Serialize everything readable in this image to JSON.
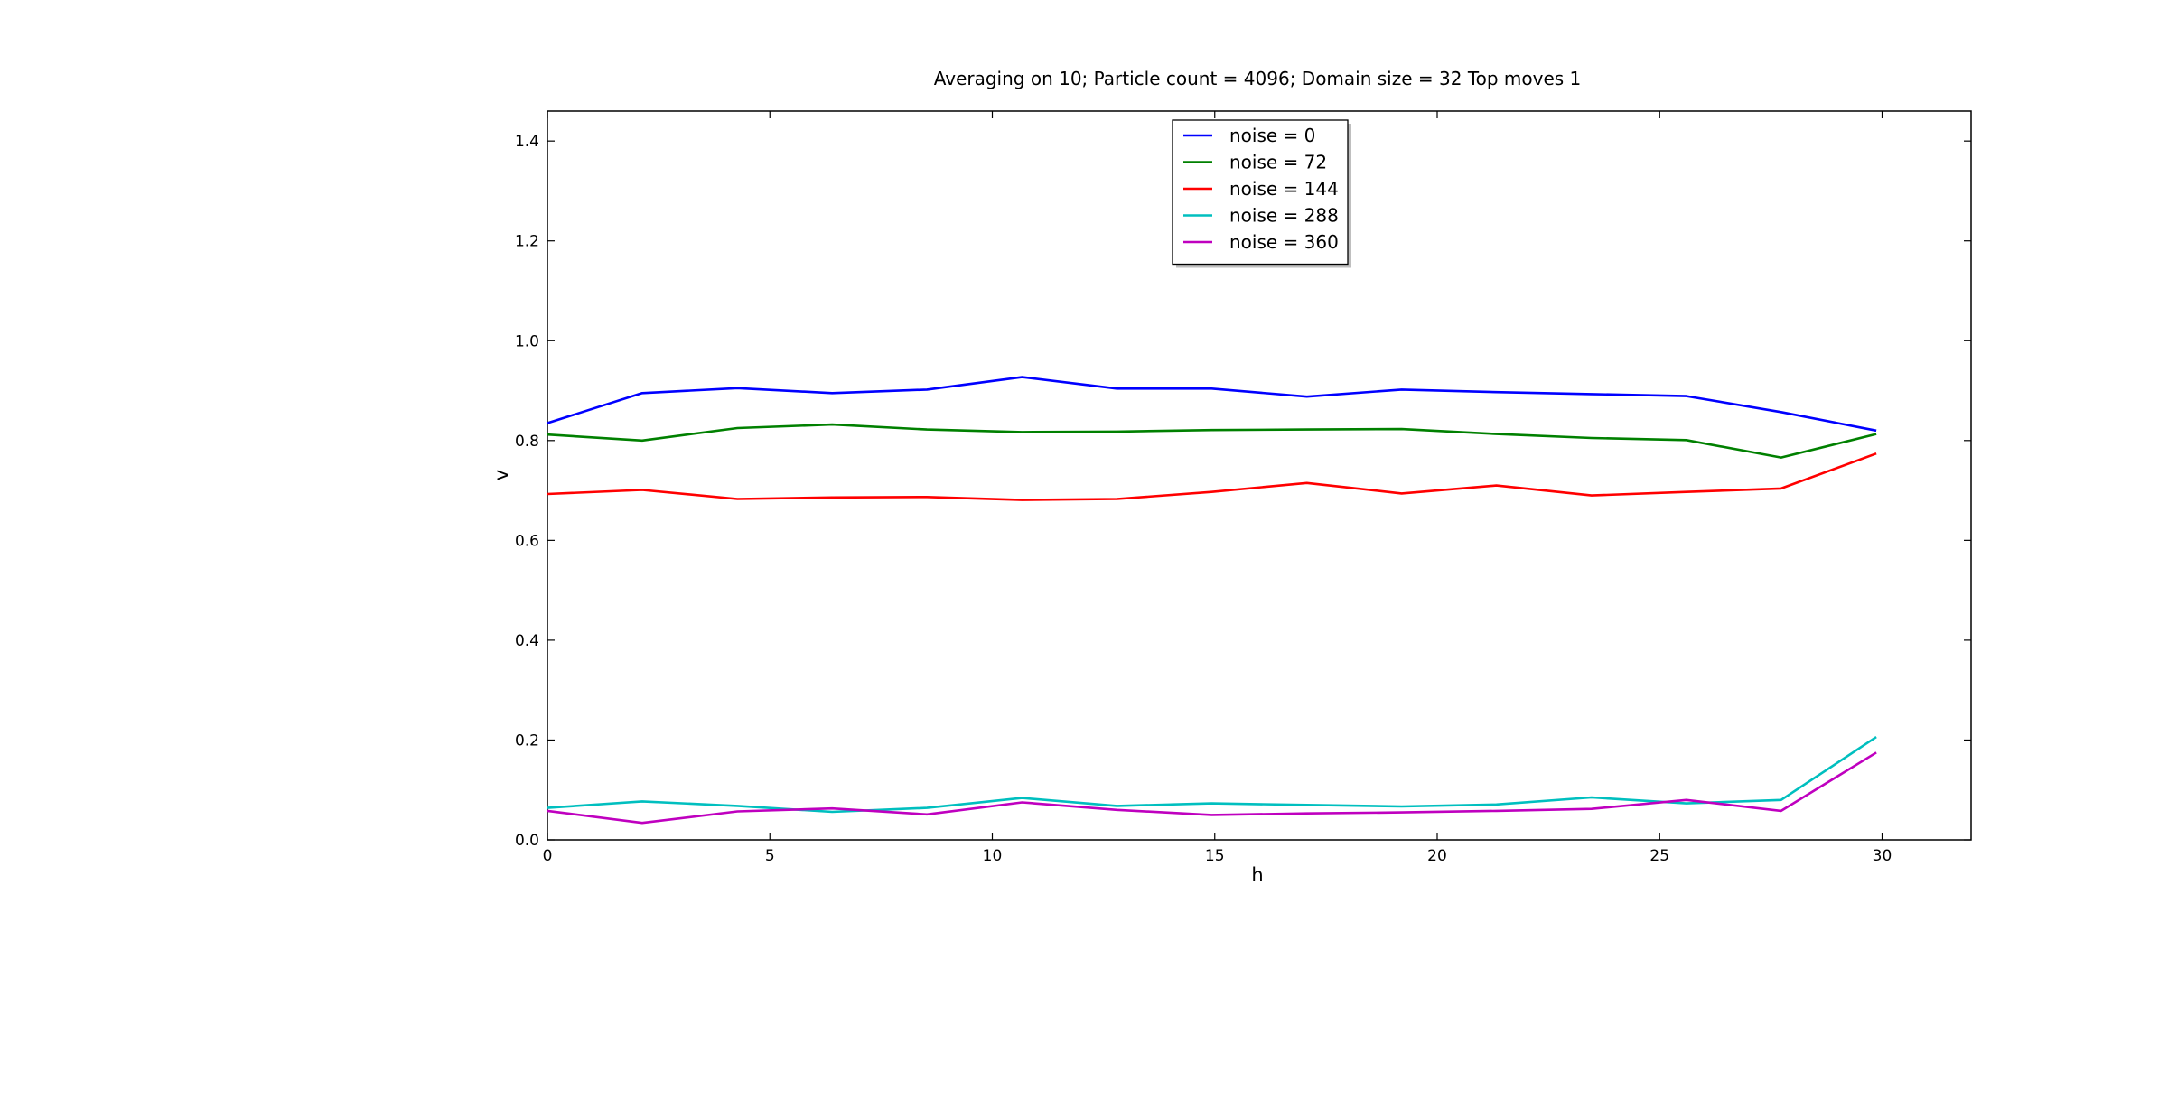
{
  "chart_data": {
    "type": "line",
    "title": "Averaging on 10; Particle count = 4096; Domain size = 32 Top moves 1",
    "xlabel": "h",
    "ylabel": "v",
    "xlim": [
      0,
      32
    ],
    "ylim": [
      0,
      1.46
    ],
    "xticks": [
      0,
      5,
      10,
      15,
      20,
      25,
      30
    ],
    "yticks": [
      0.0,
      0.2,
      0.4,
      0.6,
      0.8,
      1.0,
      1.2,
      1.4
    ],
    "xtick_labels": [
      "0",
      "5",
      "10",
      "15",
      "20",
      "25",
      "30"
    ],
    "ytick_labels": [
      "0.0",
      "0.2",
      "0.4",
      "0.6",
      "0.8",
      "1.0",
      "1.2",
      "1.4"
    ],
    "grid": false,
    "legend_position": "top-center",
    "x": [
      0,
      2.13,
      4.27,
      6.4,
      8.53,
      10.67,
      12.8,
      14.93,
      17.07,
      19.2,
      21.33,
      23.47,
      25.6,
      27.73,
      29.87
    ],
    "series": [
      {
        "name": "noise = 0",
        "color": "#0000ff",
        "values": [
          0.835,
          0.895,
          0.905,
          0.895,
          0.902,
          0.927,
          0.904,
          0.904,
          0.888,
          0.902,
          0.897,
          0.893,
          0.889,
          0.857,
          0.82
        ]
      },
      {
        "name": "noise = 72",
        "color": "#008000",
        "values": [
          0.812,
          0.8,
          0.825,
          0.832,
          0.822,
          0.817,
          0.818,
          0.821,
          0.822,
          0.823,
          0.813,
          0.805,
          0.801,
          0.766,
          0.813
        ]
      },
      {
        "name": "noise = 144",
        "color": "#ff0000",
        "values": [
          0.693,
          0.701,
          0.683,
          0.686,
          0.687,
          0.681,
          0.683,
          0.697,
          0.715,
          0.694,
          0.71,
          0.69,
          0.697,
          0.704,
          0.774
        ]
      },
      {
        "name": "noise = 288",
        "color": "#00bfbf",
        "values": [
          0.064,
          0.077,
          0.068,
          0.056,
          0.064,
          0.084,
          0.068,
          0.073,
          0.07,
          0.067,
          0.071,
          0.085,
          0.073,
          0.08,
          0.206
        ]
      },
      {
        "name": "noise = 360",
        "color": "#bf00bf",
        "values": [
          0.058,
          0.034,
          0.057,
          0.063,
          0.051,
          0.075,
          0.06,
          0.05,
          0.053,
          0.055,
          0.058,
          0.062,
          0.08,
          0.058,
          0.175
        ]
      }
    ]
  }
}
